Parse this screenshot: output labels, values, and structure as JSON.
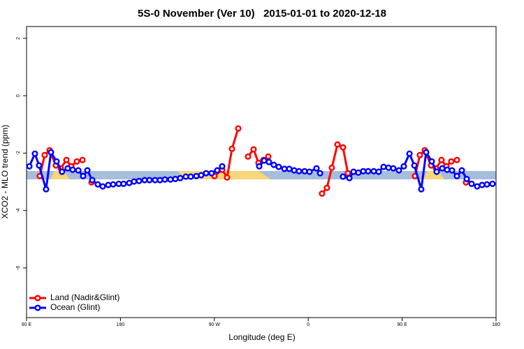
{
  "chart_data": {
    "type": "line",
    "title": "5S-0 November (Ver 10)   2015-01-01 to 2020-12-18",
    "x_label": "Longitude (deg E)",
    "y_label": "XCO2 - MLO trend (ppm)",
    "xlim": [
      90,
      540
    ],
    "ylim": [
      -7.73,
      2.41
    ],
    "xticks": [
      {
        "value": 90,
        "label": "90 E"
      },
      180,
      {
        "value": 270,
        "label": "90 W"
      },
      {
        "value": 360,
        "label": "0"
      },
      {
        "value": 450,
        "label": "90 E"
      },
      {
        "value": 540,
        "label": "180"
      }
    ],
    "yticks": [
      -6,
      -4,
      -2,
      0,
      2
    ],
    "grid": false,
    "legend": "bottom-left",
    "series": [
      {
        "name": "Land (Nadir&Glint)",
        "color": "#ff0000",
        "x": [
          102.7,
          107.4,
          112.1,
          118.1,
          122.8,
          128.2,
          132.9,
          138.2,
          143.6,
          148,
          152.3,
          210,
          270.1,
          277.5,
          282.2,
          286.9,
          292.9,
          298,
          302.3,
          307.6,
          312.3,
          317,
          321.7,
          350,
          373.2,
          377.9,
          382.6,
          388,
          393.3,
          398,
          430,
          462.3,
          467,
          471.7,
          477.7,
          482.4,
          487.7,
          492.4,
          497.1,
          502.5,
          507,
          511.2
        ],
        "values": [
          -2.8,
          -2.07,
          -1.9,
          -2.43,
          -2.53,
          -2.24,
          -2.46,
          -2.29,
          -2.24,
          null,
          -3.02,
          null,
          -2.8,
          -2.58,
          -2.85,
          -1.85,
          -1.14,
          null,
          -2.12,
          -1.87,
          -2.34,
          -2.24,
          -2.12,
          null,
          -3.41,
          -3.21,
          -2.51,
          -1.7,
          -1.8,
          -2.7,
          null,
          -2.8,
          -2.07,
          -1.9,
          -2.43,
          -2.53,
          -2.24,
          -2.46,
          -2.29,
          -2.24,
          null,
          -3.02
        ]
      },
      {
        "name": "Ocean (Glint)",
        "color": "#0000ff",
        "x": [
          92.7,
          98,
          102,
          108.7,
          113.4,
          118.8,
          124,
          129.5,
          134.2,
          139.6,
          144.2,
          148.3,
          153,
          158.3,
          163,
          168.3,
          173,
          178.4,
          183,
          188.4,
          193,
          197.8,
          203.2,
          207.8,
          213.2,
          217.9,
          222.6,
          227.9,
          232.6,
          237.3,
          242.7,
          247.4,
          252.7,
          257.4,
          262.1,
          267.4,
          272.8,
          277.5,
          295,
          313,
          317.7,
          322.3,
          327,
          331.7,
          337.1,
          341.8,
          346.5,
          351.1,
          356.5,
          361.2,
          367.9,
          371.3,
          380,
          393.3,
          399.4,
          403.4,
          408,
          412.7,
          417.4,
          422.8,
          427.5,
          432.2,
          436.9,
          441.5,
          446.9,
          451.6,
          457,
          461.7,
          468.3,
          473,
          478.4,
          483.1,
          488.4,
          493.1,
          497.8,
          502.5,
          507.2,
          511.9,
          516.6,
          521.9,
          526.6,
          531.3,
          536.6
        ],
        "values": [
          -2.46,
          -2.02,
          -2.43,
          -3.26,
          -1.97,
          -2.29,
          -2.65,
          -2.53,
          -2.58,
          -2.6,
          -2.8,
          -2.6,
          -2.94,
          -3.09,
          -3.16,
          -3.11,
          -3.09,
          -3.07,
          -3.07,
          -3.04,
          -2.99,
          -2.97,
          -2.94,
          -2.94,
          -2.94,
          -2.94,
          -2.92,
          -2.92,
          -2.9,
          -2.87,
          -2.82,
          -2.82,
          -2.8,
          -2.77,
          -2.7,
          -2.7,
          -2.6,
          -2.46,
          null,
          -2.46,
          -2.26,
          -2.31,
          -2.41,
          -2.48,
          -2.55,
          -2.55,
          -2.6,
          -2.63,
          -2.63,
          -2.65,
          -2.53,
          -2.7,
          null,
          -2.82,
          -2.87,
          -2.65,
          -2.68,
          -2.63,
          -2.63,
          -2.63,
          -2.65,
          -2.48,
          -2.51,
          -2.53,
          -2.6,
          -2.46,
          -2.02,
          -2.43,
          -3.26,
          -1.97,
          -2.29,
          -2.65,
          -2.53,
          -2.58,
          -2.6,
          -2.8,
          -2.6,
          -2.9,
          -3.07,
          -3.16,
          -3.11,
          -3.09,
          -3.07
        ]
      }
    ]
  }
}
